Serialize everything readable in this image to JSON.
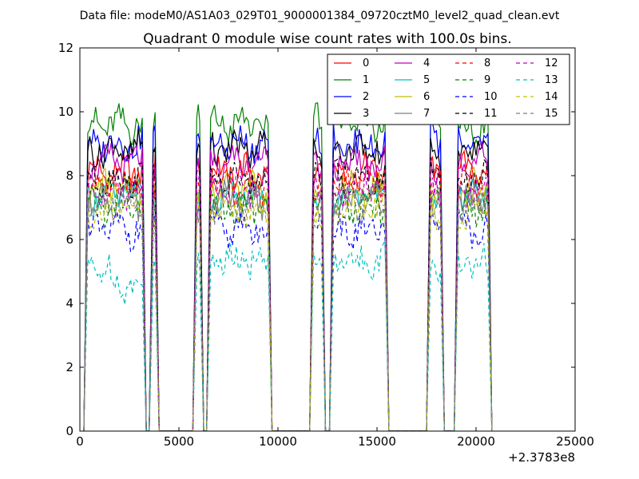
{
  "figure": {
    "suptitle": "Data file: modeM0/AS1A03_029T01_9000001384_09720cztM0_level2_quad_clean.evt"
  },
  "chart_data": {
    "type": "line",
    "title": "Quadrant 0 module wise count rates with 100.0s bins.",
    "xlabel": "",
    "ylabel": "",
    "x_offset_label": "+2.3783e8",
    "xlim": [
      0,
      25000
    ],
    "ylim": [
      0,
      12
    ],
    "xticks": [
      0,
      5000,
      10000,
      15000,
      20000,
      25000
    ],
    "xtick_labels": [
      "0",
      "5000",
      "10000",
      "15000",
      "20000",
      "25000"
    ],
    "yticks": [
      0,
      2,
      4,
      6,
      8,
      10,
      12
    ],
    "ytick_labels": [
      "0",
      "2",
      "4",
      "6",
      "8",
      "10",
      "12"
    ],
    "grid": false,
    "legend_position": "top-right",
    "legend_columns": 4,
    "segments": [
      {
        "start": 400,
        "end": 3150
      },
      {
        "start": 3700,
        "end": 3800
      },
      {
        "start": 5900,
        "end": 6050
      },
      {
        "start": 6600,
        "end": 9500
      },
      {
        "start": 11800,
        "end": 12200
      },
      {
        "start": 12800,
        "end": 15400
      },
      {
        "start": 17700,
        "end": 18200
      },
      {
        "start": 19100,
        "end": 20600
      }
    ],
    "dropout_duration": 200,
    "series": [
      {
        "name": "0",
        "color": "#ff0000",
        "dash": "solid",
        "level": 8.1
      },
      {
        "name": "1",
        "color": "#008000",
        "dash": "solid",
        "level": 9.6
      },
      {
        "name": "2",
        "color": "#0000ff",
        "dash": "solid",
        "level": 9.0
      },
      {
        "name": "3",
        "color": "#000000",
        "dash": "solid",
        "level": 8.8
      },
      {
        "name": "4",
        "color": "#bf00bf",
        "dash": "solid",
        "level": 8.4
      },
      {
        "name": "5",
        "color": "#00bfbf",
        "dash": "solid",
        "level": 7.4
      },
      {
        "name": "6",
        "color": "#bfbf00",
        "dash": "solid",
        "level": 7.6
      },
      {
        "name": "7",
        "color": "#808080",
        "dash": "solid",
        "level": 7.2
      },
      {
        "name": "8",
        "color": "#ff0000",
        "dash": "dashed",
        "level": 7.7
      },
      {
        "name": "9",
        "color": "#008000",
        "dash": "dashed",
        "level": 7.0
      },
      {
        "name": "10",
        "color": "#0000ff",
        "dash": "dashed",
        "level": 6.3
      },
      {
        "name": "11",
        "color": "#000000",
        "dash": "dashed",
        "level": 7.9
      },
      {
        "name": "12",
        "color": "#bf00bf",
        "dash": "dashed",
        "level": 7.6
      },
      {
        "name": "13",
        "color": "#00bfbf",
        "dash": "dashed",
        "level": 5.3
      },
      {
        "name": "14",
        "color": "#bfbf00",
        "dash": "dashed",
        "level": 6.9
      },
      {
        "name": "15",
        "color": "#808080",
        "dash": "dashed",
        "level": 7.1
      }
    ]
  }
}
